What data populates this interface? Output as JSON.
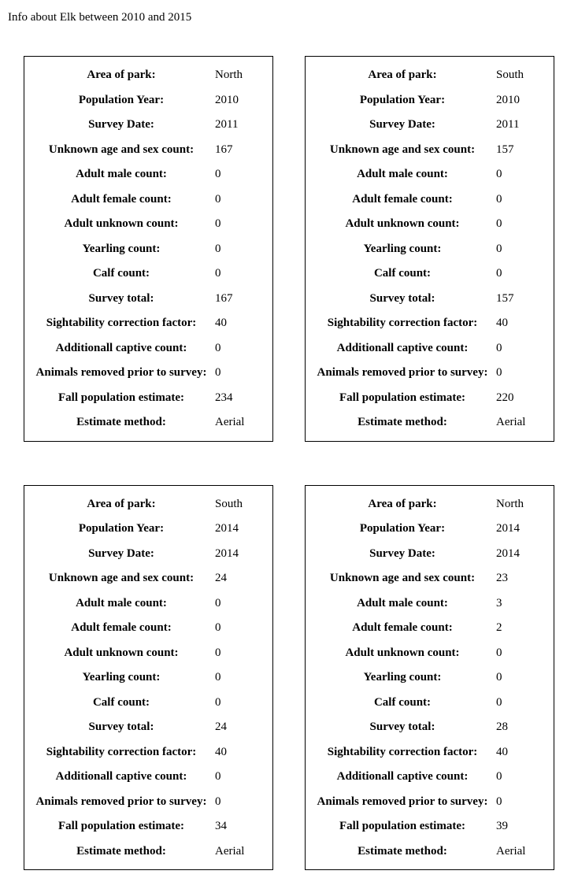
{
  "title": "Info about Elk between 2010 and 2015",
  "labels": {
    "area": "Area of park:",
    "popYear": "Population Year:",
    "surveyDate": "Survey Date:",
    "unknownAgeSex": "Unknown age and sex count:",
    "adultMale": "Adult male count:",
    "adultFemale": "Adult female count:",
    "adultUnknown": "Adult unknown count:",
    "yearling": "Yearling count:",
    "calf": "Calf count:",
    "surveyTotal": "Survey total:",
    "sightability": "Sightability correction factor:",
    "additionalCaptive": "Additionall captive count:",
    "removedPrior": "Animals removed prior to survey:",
    "fallEstimate": "Fall population estimate:",
    "estimateMethod": "Estimate method:"
  },
  "cards": [
    {
      "area": "North",
      "popYear": "2010",
      "surveyDate": "2011",
      "unknownAgeSex": "167",
      "adultMale": "0",
      "adultFemale": "0",
      "adultUnknown": "0",
      "yearling": "0",
      "calf": "0",
      "surveyTotal": "167",
      "sightability": "40",
      "additionalCaptive": "0",
      "removedPrior": "0",
      "fallEstimate": "234",
      "estimateMethod": "Aerial"
    },
    {
      "area": "South",
      "popYear": "2010",
      "surveyDate": "2011",
      "unknownAgeSex": "157",
      "adultMale": "0",
      "adultFemale": "0",
      "adultUnknown": "0",
      "yearling": "0",
      "calf": "0",
      "surveyTotal": "157",
      "sightability": "40",
      "additionalCaptive": "0",
      "removedPrior": "0",
      "fallEstimate": "220",
      "estimateMethod": "Aerial"
    },
    {
      "area": "South",
      "popYear": "2014",
      "surveyDate": "2014",
      "unknownAgeSex": "24",
      "adultMale": "0",
      "adultFemale": "0",
      "adultUnknown": "0",
      "yearling": "0",
      "calf": "0",
      "surveyTotal": "24",
      "sightability": "40",
      "additionalCaptive": "0",
      "removedPrior": "0",
      "fallEstimate": "34",
      "estimateMethod": "Aerial"
    },
    {
      "area": "North",
      "popYear": "2014",
      "surveyDate": "2014",
      "unknownAgeSex": "23",
      "adultMale": "3",
      "adultFemale": "2",
      "adultUnknown": "0",
      "yearling": "0",
      "calf": "0",
      "surveyTotal": "28",
      "sightability": "40",
      "additionalCaptive": "0",
      "removedPrior": "0",
      "fallEstimate": "39",
      "estimateMethod": "Aerial"
    }
  ],
  "styling": {
    "background_color": "#ffffff",
    "text_color": "#000000",
    "border_color": "#000000",
    "font_family": "Times New Roman",
    "title_fontsize": 15,
    "label_fontsize": 15,
    "value_fontsize": 15,
    "card_border_width": 1,
    "grid_columns": 2,
    "column_gap": 40,
    "row_gap": 55,
    "label_weight": "bold",
    "label_align": "center",
    "value_align": "left"
  }
}
